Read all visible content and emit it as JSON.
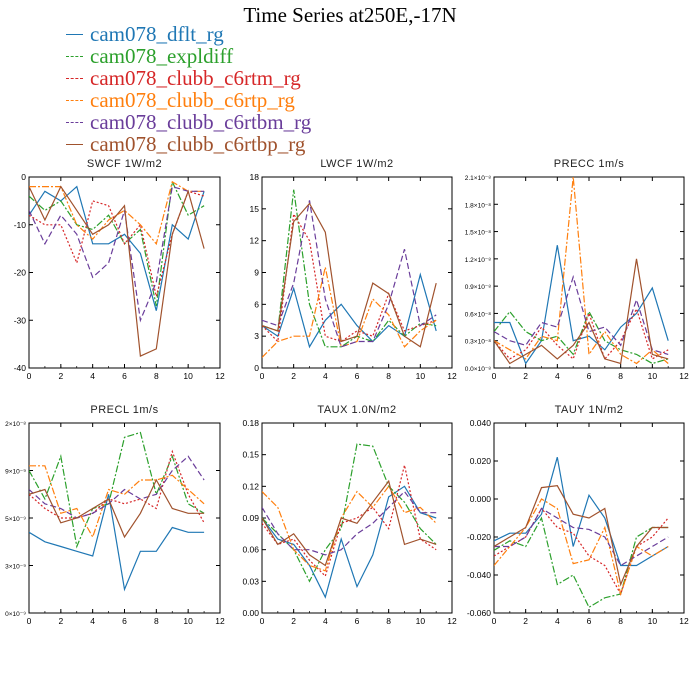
{
  "title": "Time Series at250E,-17N",
  "legend": [
    {
      "name": "cam078_dflt_rg",
      "color": "#1f77b4",
      "dash": ""
    },
    {
      "name": "cam078_expldiff",
      "color": "#2ca02c",
      "dash": "7,2,2,2"
    },
    {
      "name": "cam078_clubb_c6rtm_rg",
      "color": "#d62728",
      "dash": "2,2"
    },
    {
      "name": "cam078_clubb_c6rtp_rg",
      "color": "#ff7f0e",
      "dash": "7,2,2,2"
    },
    {
      "name": "cam078_clubb_c6rtbm_rg",
      "color": "#6a3d9a",
      "dash": "6,3"
    },
    {
      "name": "cam078_clubb_c6rtbp_rg",
      "color": "#a0522d",
      "dash": ""
    }
  ],
  "chart_data": [
    {
      "type": "line",
      "title": "SWCF  1W/m2",
      "x": [
        0,
        1,
        2,
        3,
        4,
        5,
        6,
        7,
        8,
        9,
        10,
        11
      ],
      "xlim": [
        0,
        12
      ],
      "xticks": [
        "0",
        "2",
        "4",
        "6",
        "8",
        "10",
        "12"
      ],
      "ylim": [
        -40,
        0
      ],
      "yticks": [
        "-40",
        "-30",
        "-20",
        "-10",
        "0"
      ],
      "series": [
        {
          "name": "cam078_dflt_rg",
          "values": [
            -8,
            -3,
            -5,
            -2,
            -14,
            -14,
            -12,
            -16,
            -28,
            -10,
            -13,
            -3
          ]
        },
        {
          "name": "cam078_expldiff",
          "values": [
            -4,
            -7,
            -5,
            -10,
            -11,
            -8,
            -14,
            -11,
            -27,
            -1,
            -8,
            -6
          ]
        },
        {
          "name": "cam078_clubb_c6rtm_rg",
          "values": [
            -8,
            -10,
            -10,
            -18,
            -5,
            -6,
            -14,
            -10,
            -25,
            -12,
            -3,
            -4
          ]
        },
        {
          "name": "cam078_clubb_c6rtp_rg",
          "values": [
            -2,
            -2,
            -2,
            -10,
            -13,
            -9,
            -7,
            -10,
            -14,
            -1,
            -3,
            -3
          ]
        },
        {
          "name": "cam078_clubb_c6rtbm_rg",
          "values": [
            -7,
            -14,
            -8,
            -12,
            -21,
            -18,
            -7,
            -30,
            -22,
            -2,
            -3,
            -3
          ]
        },
        {
          "name": "cam078_clubb_c6rtbp_rg",
          "values": [
            -2,
            -9,
            -2,
            -7,
            -12,
            -10,
            -6,
            -37.5,
            -36,
            -12,
            -3,
            -15
          ]
        }
      ]
    },
    {
      "type": "line",
      "title": "LWCF  1W/m2",
      "x": [
        0,
        1,
        2,
        3,
        4,
        5,
        6,
        7,
        8,
        9,
        10,
        11
      ],
      "xlim": [
        0,
        12
      ],
      "xticks": [
        "0",
        "2",
        "4",
        "6",
        "8",
        "10",
        "12"
      ],
      "ylim": [
        0,
        18
      ],
      "yticks": [
        "0",
        "3",
        "6",
        "9",
        "12",
        "15",
        "18"
      ],
      "series": [
        {
          "name": "cam078_dflt_rg",
          "values": [
            4,
            3,
            7.5,
            2,
            4.5,
            6,
            4,
            2.5,
            4,
            3,
            8.8,
            3.5
          ]
        },
        {
          "name": "cam078_expldiff",
          "values": [
            4,
            3.5,
            16.8,
            6,
            2,
            2,
            3,
            2.5,
            4.5,
            3,
            4.2,
            4
          ]
        },
        {
          "name": "cam078_clubb_c6rtm_rg",
          "values": [
            4,
            2.5,
            14.5,
            12,
            3,
            2.5,
            3.5,
            3,
            7,
            3.5,
            4,
            4.5
          ]
        },
        {
          "name": "cam078_clubb_c6rtp_rg",
          "values": [
            1,
            2.5,
            3,
            3,
            9.5,
            2,
            2.5,
            6.5,
            5,
            2,
            3.5,
            4.5
          ]
        },
        {
          "name": "cam078_clubb_c6rtbm_rg",
          "values": [
            4.5,
            4,
            8,
            15.8,
            6.5,
            2,
            2.5,
            2.5,
            6,
            11.2,
            4,
            5
          ]
        },
        {
          "name": "cam078_clubb_c6rtbp_rg",
          "values": [
            4,
            3.5,
            13.8,
            15.5,
            12.8,
            2.5,
            3,
            8,
            7,
            3,
            2,
            8
          ]
        }
      ]
    },
    {
      "type": "line",
      "title": "PRECC  1m/s",
      "x": [
        0,
        1,
        2,
        3,
        4,
        5,
        6,
        7,
        8,
        9,
        10,
        11
      ],
      "xlim": [
        0,
        12
      ],
      "xticks": [
        "0",
        "2",
        "4",
        "6",
        "8",
        "10",
        "12"
      ],
      "ylim": [
        0,
        2.1e-08
      ],
      "yticks": [
        "0.0×10⁻⁸",
        "0.3×10⁻⁸",
        "0.6×10⁻⁸",
        "0.9×10⁻⁸",
        "1.2×10⁻⁸",
        "1.5×10⁻⁸",
        "1.8×10⁻⁸",
        "2.1×10⁻⁸"
      ],
      "series": [
        {
          "name": "cam078_dflt_rg",
          "values": [
            5e-09,
            5e-09,
            5e-10,
            3e-09,
            1.35e-08,
            3e-09,
            3.5e-09,
            2e-09,
            4.5e-09,
            6e-09,
            8.8e-09,
            3e-09
          ]
        },
        {
          "name": "cam078_expldiff",
          "values": [
            4e-09,
            6.2e-09,
            4e-09,
            3e-09,
            3.5e-09,
            1.5e-09,
            6.2e-09,
            3e-09,
            2e-09,
            1.5e-09,
            5e-10,
            1e-09
          ]
        },
        {
          "name": "cam078_clubb_c6rtm_rg",
          "values": [
            3e-09,
            1e-09,
            2e-09,
            4.5e-09,
            2.5e-09,
            1e-09,
            6e-09,
            1e-09,
            3e-09,
            6.5e-09,
            1e-09,
            2e-09
          ]
        },
        {
          "name": "cam078_clubb_c6rtp_rg",
          "values": [
            3e-09,
            2e-09,
            1e-09,
            3.5e-09,
            3e-09,
            2.1e-08,
            1.5e-09,
            4e-09,
            1.5e-09,
            5e-10,
            2e-09,
            5e-10
          ]
        },
        {
          "name": "cam078_clubb_c6rtbm_rg",
          "values": [
            4e-09,
            3e-09,
            2.5e-09,
            5e-09,
            4.5e-09,
            1e-08,
            4e-09,
            4.5e-09,
            2.5e-09,
            7.5e-09,
            2e-09,
            1.5e-09
          ]
        },
        {
          "name": "cam078_clubb_c6rtbp_rg",
          "values": [
            3e-09,
            5e-10,
            1.5e-09,
            2.5e-09,
            1e-09,
            2.5e-09,
            5e-09,
            1e-09,
            5e-10,
            1.2e-08,
            1.5e-09,
            1e-09
          ]
        }
      ]
    },
    {
      "type": "line",
      "title": "PRECL  1m/s",
      "x": [
        0,
        1,
        2,
        3,
        4,
        5,
        6,
        7,
        8,
        9,
        10,
        11
      ],
      "xlim": [
        0,
        12
      ],
      "xticks": [
        "0",
        "2",
        "4",
        "6",
        "8",
        "10",
        "12"
      ],
      "ylim": [
        0,
        4
      ],
      "yticks": [
        "0×10⁻⁹",
        "3×10⁻⁹",
        "5×10⁻⁹",
        "9×10⁻⁹",
        "2×10⁻⁸"
      ],
      "series": [
        {
          "name": "cam078_dflt_rg",
          "values": [
            1.7,
            1.5,
            1.4,
            1.3,
            1.2,
            2.5,
            0.5,
            1.3,
            1.3,
            1.8,
            1.7,
            1.7
          ]
        },
        {
          "name": "cam078_expldiff",
          "values": [
            3,
            2.4,
            3.3,
            1.4,
            2.2,
            2.3,
            3.7,
            3.8,
            2.5,
            3.3,
            2.3,
            2.1
          ]
        },
        {
          "name": "cam078_clubb_c6rtm_rg",
          "values": [
            2.5,
            2.2,
            2.0,
            2.0,
            2.1,
            2.4,
            2.3,
            2.4,
            2.2,
            3.4,
            2.5,
            1.9
          ]
        },
        {
          "name": "cam078_clubb_c6rtp_rg",
          "values": [
            3.1,
            3.1,
            2.1,
            2.2,
            1.6,
            2.6,
            2.5,
            2.8,
            2.8,
            2.9,
            2.6,
            2.3
          ]
        },
        {
          "name": "cam078_clubb_c6rtbm_rg",
          "values": [
            2.6,
            2.3,
            2.2,
            2.0,
            2.1,
            2.3,
            2.6,
            2.4,
            2.5,
            3.0,
            3.3,
            2.8
          ]
        },
        {
          "name": "cam078_clubb_c6rtbp_rg",
          "values": [
            2.5,
            2.6,
            1.9,
            2.0,
            2.2,
            2.4,
            1.6,
            2.1,
            2.8,
            2.2,
            2.1,
            2.1
          ]
        }
      ]
    },
    {
      "type": "line",
      "title": "TAUX  1.0N/m2",
      "x": [
        0,
        1,
        2,
        3,
        4,
        5,
        6,
        7,
        8,
        9,
        10,
        11
      ],
      "xlim": [
        0,
        12
      ],
      "xticks": [
        "0",
        "2",
        "4",
        "6",
        "8",
        "10",
        "12"
      ],
      "ylim": [
        0,
        0.18
      ],
      "yticks": [
        "0.00",
        "0.03",
        "0.06",
        "0.09",
        "0.12",
        "0.15",
        "0.18"
      ],
      "series": [
        {
          "name": "cam078_dflt_rg",
          "values": [
            0.09,
            0.07,
            0.065,
            0.045,
            0.015,
            0.07,
            0.025,
            0.055,
            0.11,
            0.12,
            0.095,
            0.09
          ]
        },
        {
          "name": "cam078_expldiff",
          "values": [
            0.09,
            0.075,
            0.06,
            0.03,
            0.06,
            0.08,
            0.16,
            0.158,
            0.12,
            0.105,
            0.08,
            0.065
          ]
        },
        {
          "name": "cam078_clubb_c6rtm_rg",
          "values": [
            0.085,
            0.065,
            0.07,
            0.05,
            0.035,
            0.085,
            0.09,
            0.1,
            0.08,
            0.14,
            0.07,
            0.06
          ]
        },
        {
          "name": "cam078_clubb_c6rtp_rg",
          "values": [
            0.115,
            0.1,
            0.06,
            0.045,
            0.04,
            0.09,
            0.115,
            0.1,
            0.12,
            0.095,
            0.1,
            0.085
          ]
        },
        {
          "name": "cam078_clubb_c6rtbm_rg",
          "values": [
            0.1,
            0.075,
            0.06,
            0.06,
            0.055,
            0.06,
            0.075,
            0.085,
            0.1,
            0.115,
            0.095,
            0.095
          ]
        },
        {
          "name": "cam078_clubb_c6rtbp_rg",
          "values": [
            0.09,
            0.065,
            0.075,
            0.055,
            0.045,
            0.09,
            0.085,
            0.105,
            0.125,
            0.065,
            0.07,
            0.065
          ]
        }
      ]
    },
    {
      "type": "line",
      "title": "TAUY  1N/m2",
      "x": [
        0,
        1,
        2,
        3,
        4,
        5,
        6,
        7,
        8,
        9,
        10,
        11
      ],
      "xlim": [
        0,
        12
      ],
      "xticks": [
        "0",
        "2",
        "4",
        "6",
        "8",
        "10",
        "12"
      ],
      "ylim": [
        -0.06,
        0.04
      ],
      "yticks": [
        "-0.060",
        "-0.040",
        "-0.020",
        "0.000",
        "0.020",
        "0.040"
      ],
      "series": [
        {
          "name": "cam078_dflt_rg",
          "values": [
            -0.022,
            -0.018,
            -0.018,
            -0.008,
            0.022,
            -0.025,
            0.002,
            -0.01,
            -0.035,
            -0.035,
            -0.03,
            -0.025
          ]
        },
        {
          "name": "cam078_expldiff",
          "values": [
            -0.027,
            -0.022,
            -0.025,
            -0.01,
            -0.045,
            -0.04,
            -0.057,
            -0.052,
            -0.05,
            -0.02,
            -0.015,
            -0.015
          ]
        },
        {
          "name": "cam078_clubb_c6rtm_rg",
          "values": [
            -0.03,
            -0.025,
            -0.02,
            -0.005,
            -0.015,
            -0.018,
            -0.03,
            -0.035,
            -0.05,
            -0.025,
            -0.02,
            -0.01
          ]
        },
        {
          "name": "cam078_clubb_c6rtp_rg",
          "values": [
            -0.035,
            -0.025,
            -0.015,
            0.0,
            -0.005,
            -0.034,
            -0.032,
            -0.015,
            -0.05,
            -0.025,
            -0.03,
            -0.025
          ]
        },
        {
          "name": "cam078_clubb_c6rtbm_rg",
          "values": [
            -0.025,
            -0.025,
            -0.02,
            -0.005,
            -0.01,
            -0.015,
            -0.016,
            -0.02,
            -0.035,
            -0.03,
            -0.025,
            -0.02
          ]
        },
        {
          "name": "cam078_clubb_c6rtbp_rg",
          "values": [
            -0.025,
            -0.02,
            -0.015,
            0.006,
            0.007,
            -0.008,
            -0.01,
            -0.005,
            -0.045,
            -0.025,
            -0.015,
            -0.015
          ]
        }
      ]
    }
  ]
}
